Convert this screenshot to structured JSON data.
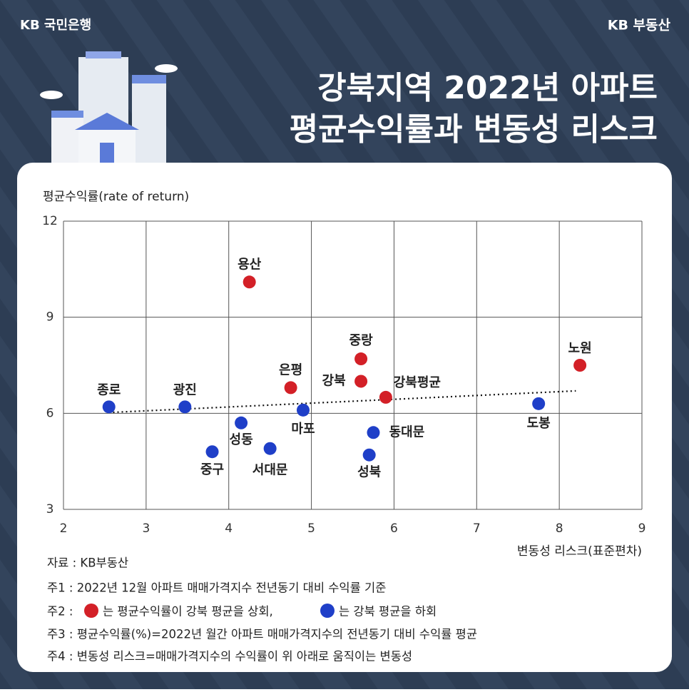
{
  "header": {
    "bank": "KB 국민은행",
    "brand": "KB 부동산"
  },
  "chart_data": {
    "type": "scatter",
    "title": [
      "강북지역 2022년 아파트",
      "평균수익률과 변동성 리스크"
    ],
    "y_label": "평균수익률(rate of return)",
    "x_label": "변동성 리스크(표준편차)",
    "labels": [
      "종로",
      "광진",
      "성동",
      "중구",
      "서대문",
      "마포",
      "은평",
      "용산",
      "중랑",
      "강북",
      "강북평균",
      "동대문",
      "성북",
      "도봉",
      "노원"
    ],
    "x": [
      2.55,
      3.47,
      4.15,
      3.8,
      4.5,
      4.9,
      4.75,
      4.25,
      5.6,
      5.6,
      5.9,
      5.75,
      5.7,
      7.75,
      8.25
    ],
    "values": [
      6.2,
      6.2,
      5.7,
      4.8,
      4.9,
      6.1,
      6.8,
      10.1,
      7.7,
      7.0,
      6.5,
      5.4,
      4.7,
      6.3,
      7.5
    ],
    "colors": [
      "#1f3fc8",
      "#1f3fc8",
      "#1f3fc8",
      "#1f3fc8",
      "#1f3fc8",
      "#1f3fc8",
      "#d32027",
      "#d32027",
      "#d32027",
      "#d32027",
      "#d32027",
      "#1f3fc8",
      "#1f3fc8",
      "#1f3fc8",
      "#d32027"
    ],
    "trend": {
      "x": [
        2.6,
        8.2
      ],
      "y": [
        6.03,
        6.7
      ],
      "color": "#111111"
    },
    "xlim": [
      2,
      9
    ],
    "xticks": [
      2,
      3,
      4,
      5,
      6,
      7,
      8,
      9
    ],
    "ylim": [
      3,
      12
    ],
    "yticks": [
      3,
      6,
      9,
      12
    ],
    "grid": true
  },
  "notes": {
    "source": "자료 : KB부동산",
    "note1": "주1 : 2022년 12월 아파트 매매가격지수 전년동기 대비 수익률 기준",
    "note2": [
      "주2 : ",
      "는 평균수익률이 강북 평균을 상회,",
      "는 강북 평균을 하회"
    ],
    "note3": "주3 : 평균수익률(%)=2022년 월간 아파트 매매가격지수의 전년동기 대비 수익률 평균",
    "note4": "주4 : 변동성 리스크=매매가격지수의 수익률이 위 아래로 움직이는 변동성"
  }
}
